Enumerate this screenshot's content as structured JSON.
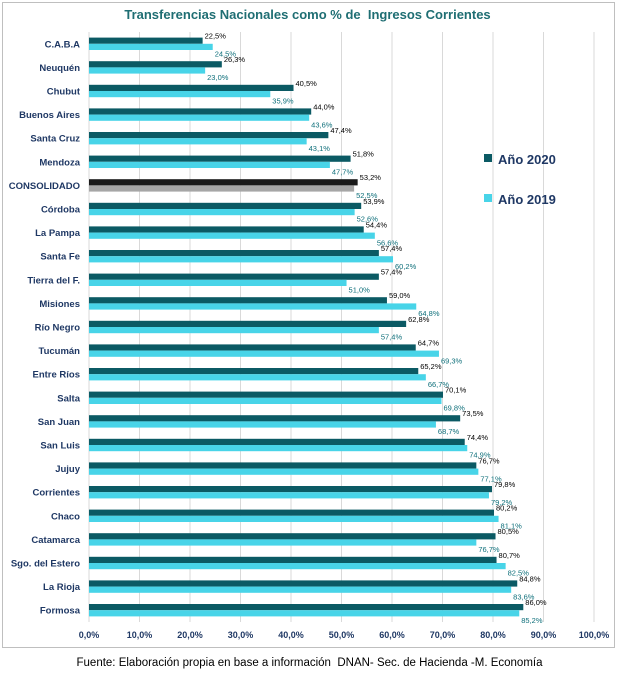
{
  "colors": {
    "series_2020": "#0b5a64",
    "series_2019": "#48d4e8",
    "highlight_2020": "#1a1a1a",
    "highlight_2019": "#a6a6a6",
    "gridline": "#d9d9d9",
    "text": "#1f3864"
  },
  "source_note": "Fuente: Elaboración propia en base a información  DNAN- Sec. de Hacienda -M. Economía",
  "chart_data": {
    "type": "bar",
    "orientation": "horizontal",
    "title": "Transferencias Nacionales como % de  Ingresos Corrientes",
    "categories": [
      "C.A.B.A",
      "Neuquén",
      "Chubut",
      "Buenos Aires",
      "Santa Cruz",
      "Mendoza",
      "CONSOLIDADO",
      "Córdoba",
      "La Pampa",
      "Santa Fe",
      "Tierra del F.",
      "Misiones",
      "Río Negro",
      "Tucumán",
      "Entre Ríos",
      "Salta",
      "San Juan",
      "San Luis",
      "Jujuy",
      "Corrientes",
      "Chaco",
      "Catamarca",
      "Sgo. del Estero",
      "La Rioja",
      "Formosa"
    ],
    "highlighted_category": "CONSOLIDADO",
    "series": [
      {
        "name": "Año 2020",
        "values": [
          22.5,
          26.3,
          40.5,
          44.0,
          47.4,
          51.8,
          53.2,
          53.9,
          54.4,
          57.4,
          57.4,
          59.0,
          62.8,
          64.7,
          65.2,
          70.1,
          73.5,
          74.4,
          76.7,
          79.8,
          80.2,
          80.5,
          80.7,
          84.8,
          86.0
        ],
        "labels": [
          "22,5%",
          "26,3%",
          "40,5%",
          "44,0%",
          "47,4%",
          "51,8%",
          "53,2%",
          "53,9%",
          "54,4%",
          "57,4%",
          "57,4%",
          "59,0%",
          "62,8%",
          "64,7%",
          "65,2%",
          "70,1%",
          "73,5%",
          "74,4%",
          "76,7%",
          "79,8%",
          "80,2%",
          "80,5%",
          "80,7%",
          "84,8%",
          "86,0%"
        ]
      },
      {
        "name": "Año 2019",
        "values": [
          24.5,
          23.0,
          35.9,
          43.6,
          43.1,
          47.7,
          52.5,
          52.6,
          56.6,
          60.2,
          51.0,
          64.8,
          57.4,
          69.3,
          66.7,
          69.8,
          68.7,
          74.9,
          77.1,
          79.2,
          81.1,
          76.7,
          82.5,
          83.6,
          85.2
        ],
        "labels": [
          "24,5%",
          "23,0%",
          "35,9%",
          "43,6%",
          "43,1%",
          "47,7%",
          "52,5%",
          "52,6%",
          "56,6%",
          "60,2%",
          "51,0%",
          "64,8%",
          "57,4%",
          "69,3%",
          "66,7%",
          "69,8%",
          "68,7%",
          "74,9%",
          "77,1%",
          "79,2%",
          "81,1%",
          "76,7%",
          "82,5%",
          "83,6%",
          "85,2%"
        ]
      }
    ],
    "xlim": [
      0,
      100
    ],
    "x_ticks": [
      0,
      10,
      20,
      30,
      40,
      50,
      60,
      70,
      80,
      90,
      100
    ],
    "x_tick_labels": [
      "0,0%",
      "10,0%",
      "20,0%",
      "30,0%",
      "40,0%",
      "50,0%",
      "60,0%",
      "70,0%",
      "80,0%",
      "90,0%",
      "100,0%"
    ],
    "grid": true,
    "legend_position": "right"
  }
}
